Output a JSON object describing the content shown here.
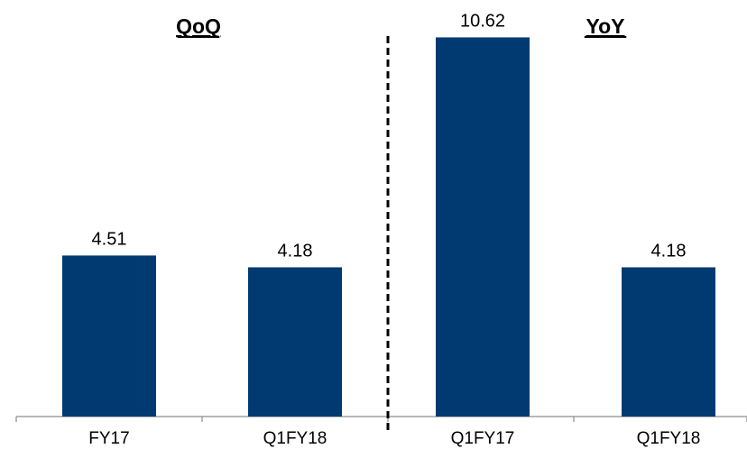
{
  "chart_data": {
    "type": "bar",
    "categories": [
      "FY17",
      "Q1FY18",
      "Q1FY17",
      "Q1FY18"
    ],
    "values": [
      4.51,
      4.18,
      10.62,
      4.18
    ],
    "data_labels": [
      "4.51",
      "4.18",
      "10.62",
      "4.18"
    ],
    "groups": [
      {
        "title": "QoQ",
        "categories": [
          "FY17",
          "Q1FY18"
        ]
      },
      {
        "title": "YoY",
        "categories": [
          "Q1FY17",
          "Q1FY18"
        ]
      }
    ],
    "title": "",
    "xlabel": "",
    "ylabel": "",
    "ylim": [
      0,
      11.5
    ],
    "grid": false,
    "legend": "none",
    "bar_color": "#003a70",
    "separator": "dashed vertical line between groups"
  }
}
